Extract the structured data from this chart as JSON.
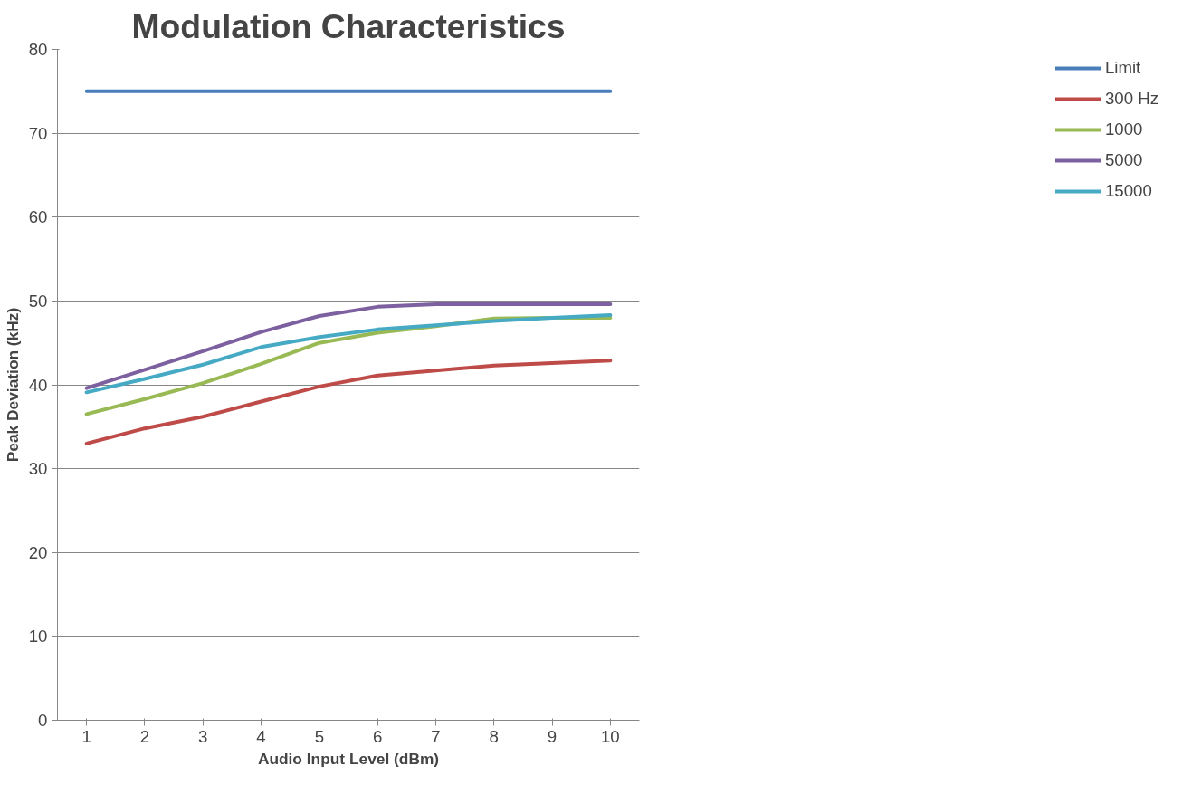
{
  "chart_data": {
    "type": "line",
    "title": "Modulation Characteristics",
    "xlabel": "Audio Input Level (dBm)",
    "ylabel": "Peak Deviation (kHz)",
    "categories": [
      "1",
      "2",
      "3",
      "4",
      "5",
      "6",
      "7",
      "8",
      "9",
      "10"
    ],
    "ylim": [
      0,
      80
    ],
    "yticks": [
      0,
      10,
      20,
      30,
      40,
      50,
      60,
      70,
      80
    ],
    "grid": "y",
    "legend": "right",
    "marker": "none",
    "line_style": "solid",
    "series": [
      {
        "name": "Limit",
        "color": "#4a7ebb",
        "values": [
          75,
          75,
          75,
          75,
          75,
          75,
          75,
          75,
          75,
          75
        ]
      },
      {
        "name": "300 Hz",
        "color": "#be4b48",
        "values": [
          33,
          34.8,
          36.2,
          38,
          39.8,
          41.1,
          41.7,
          42.3,
          42.6,
          42.9
        ]
      },
      {
        "name": "1000",
        "color": "#98b954",
        "values": [
          36.5,
          38.3,
          40.2,
          42.5,
          45,
          46.2,
          47,
          47.9,
          48,
          48
        ]
      },
      {
        "name": "5000",
        "color": "#7d60a0",
        "values": [
          39.6,
          41.8,
          44,
          46.3,
          48.2,
          49.3,
          49.6,
          49.6,
          49.6,
          49.6
        ]
      },
      {
        "name": "15000",
        "color": "#46aac5",
        "values": [
          39.1,
          40.7,
          42.4,
          44.5,
          45.7,
          46.6,
          47.1,
          47.6,
          48,
          48.3
        ]
      }
    ]
  }
}
